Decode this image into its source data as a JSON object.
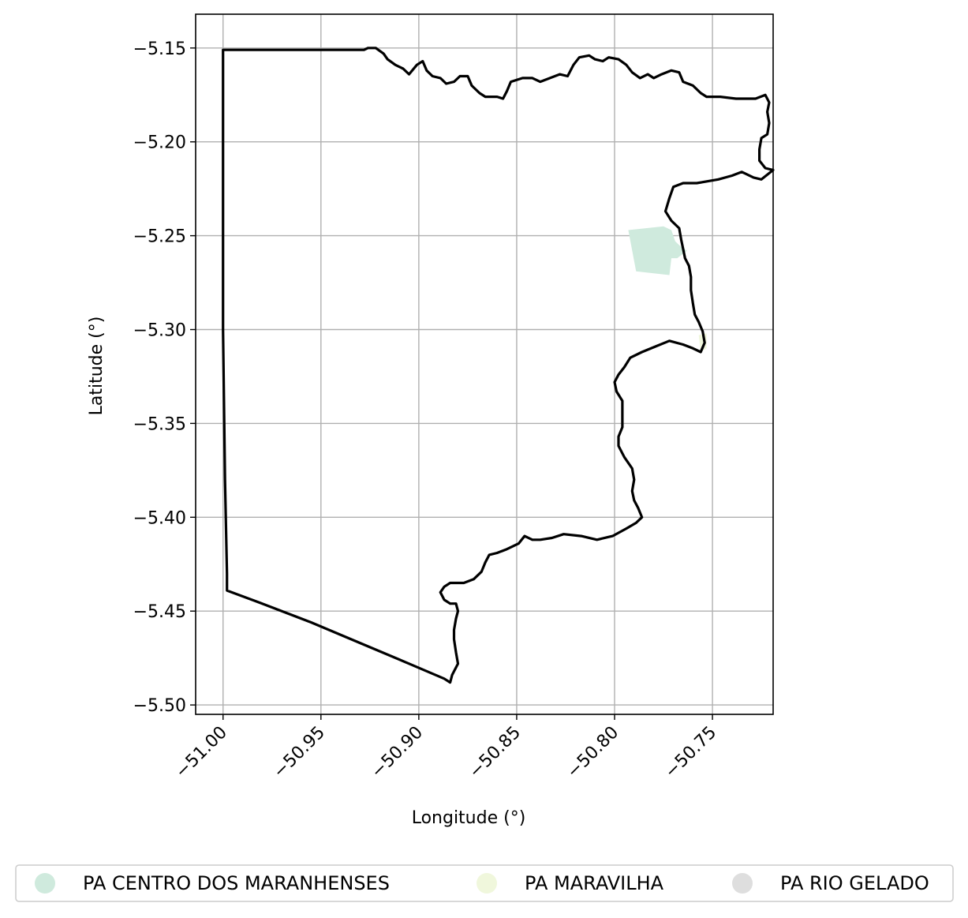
{
  "map": {
    "xlabel": "Longitude (°)",
    "ylabel": "Latitude (°)",
    "grid": true,
    "xlim": [
      -51.014,
      -50.719
    ],
    "ylim": [
      -5.505,
      -5.132
    ],
    "xticks": [
      {
        "value": -51.0,
        "label": "−51.00"
      },
      {
        "value": -50.95,
        "label": "−50.95"
      },
      {
        "value": -50.9,
        "label": "−50.90"
      },
      {
        "value": -50.85,
        "label": "−50.85"
      },
      {
        "value": -50.8,
        "label": "−50.80"
      },
      {
        "value": -50.75,
        "label": "−50.75"
      }
    ],
    "yticks": [
      {
        "value": -5.15,
        "label": "−5.15"
      },
      {
        "value": -5.2,
        "label": "−5.20"
      },
      {
        "value": -5.25,
        "label": "−5.25"
      },
      {
        "value": -5.3,
        "label": "−5.30"
      },
      {
        "value": -5.35,
        "label": "−5.35"
      },
      {
        "value": -5.4,
        "label": "−5.40"
      },
      {
        "value": -5.45,
        "label": "−5.45"
      },
      {
        "value": -5.5,
        "label": "−5.50"
      }
    ],
    "colors": {
      "boundary": "#000000",
      "grid": "#b0b0b0",
      "settlement_centro": "#cfeadd",
      "settlement_maravilha": "#f0f7dc",
      "settlement_rio_gelado": "#dedede"
    },
    "boundary": [
      [
        -51.0,
        -5.151
      ],
      [
        -50.928,
        -5.151
      ],
      [
        -50.926,
        -5.15
      ],
      [
        -50.922,
        -5.15
      ],
      [
        -50.918,
        -5.153
      ],
      [
        -50.916,
        -5.156
      ],
      [
        -50.912,
        -5.159
      ],
      [
        -50.908,
        -5.161
      ],
      [
        -50.905,
        -5.164
      ],
      [
        -50.901,
        -5.159
      ],
      [
        -50.898,
        -5.157
      ],
      [
        -50.896,
        -5.162
      ],
      [
        -50.893,
        -5.165
      ],
      [
        -50.889,
        -5.166
      ],
      [
        -50.886,
        -5.169
      ],
      [
        -50.882,
        -5.168
      ],
      [
        -50.879,
        -5.165
      ],
      [
        -50.875,
        -5.165
      ],
      [
        -50.873,
        -5.17
      ],
      [
        -50.869,
        -5.174
      ],
      [
        -50.866,
        -5.176
      ],
      [
        -50.86,
        -5.176
      ],
      [
        -50.857,
        -5.177
      ],
      [
        -50.855,
        -5.173
      ],
      [
        -50.853,
        -5.168
      ],
      [
        -50.847,
        -5.166
      ],
      [
        -50.842,
        -5.166
      ],
      [
        -50.838,
        -5.168
      ],
      [
        -50.833,
        -5.166
      ],
      [
        -50.828,
        -5.164
      ],
      [
        -50.824,
        -5.165
      ],
      [
        -50.821,
        -5.159
      ],
      [
        -50.818,
        -5.155
      ],
      [
        -50.813,
        -5.154
      ],
      [
        -50.81,
        -5.156
      ],
      [
        -50.806,
        -5.157
      ],
      [
        -50.803,
        -5.155
      ],
      [
        -50.798,
        -5.156
      ],
      [
        -50.794,
        -5.159
      ],
      [
        -50.791,
        -5.163
      ],
      [
        -50.787,
        -5.166
      ],
      [
        -50.783,
        -5.164
      ],
      [
        -50.78,
        -5.166
      ],
      [
        -50.776,
        -5.164
      ],
      [
        -50.771,
        -5.162
      ],
      [
        -50.767,
        -5.163
      ],
      [
        -50.765,
        -5.168
      ],
      [
        -50.76,
        -5.17
      ],
      [
        -50.756,
        -5.174
      ],
      [
        -50.753,
        -5.176
      ],
      [
        -50.746,
        -5.176
      ],
      [
        -50.738,
        -5.177
      ],
      [
        -50.728,
        -5.177
      ],
      [
        -50.723,
        -5.175
      ],
      [
        -50.721,
        -5.179
      ],
      [
        -50.722,
        -5.184
      ],
      [
        -50.721,
        -5.19
      ],
      [
        -50.722,
        -5.196
      ],
      [
        -50.725,
        -5.198
      ],
      [
        -50.726,
        -5.204
      ],
      [
        -50.726,
        -5.21
      ],
      [
        -50.723,
        -5.214
      ],
      [
        -50.719,
        -5.215
      ],
      [
        -50.725,
        -5.22
      ],
      [
        -50.729,
        -5.219
      ],
      [
        -50.735,
        -5.216
      ],
      [
        -50.74,
        -5.218
      ],
      [
        -50.747,
        -5.22
      ],
      [
        -50.758,
        -5.222
      ],
      [
        -50.765,
        -5.222
      ],
      [
        -50.77,
        -5.224
      ],
      [
        -50.772,
        -5.23
      ],
      [
        -50.774,
        -5.237
      ],
      [
        -50.771,
        -5.242
      ],
      [
        -50.767,
        -5.246
      ],
      [
        -50.766,
        -5.252
      ],
      [
        -50.765,
        -5.257
      ],
      [
        -50.764,
        -5.262
      ],
      [
        -50.762,
        -5.266
      ],
      [
        -50.761,
        -5.272
      ],
      [
        -50.761,
        -5.279
      ],
      [
        -50.76,
        -5.286
      ],
      [
        -50.759,
        -5.292
      ],
      [
        -50.757,
        -5.296
      ],
      [
        -50.755,
        -5.301
      ],
      [
        -50.754,
        -5.307
      ],
      [
        -50.756,
        -5.312
      ],
      [
        -50.76,
        -5.31
      ],
      [
        -50.765,
        -5.308
      ],
      [
        -50.772,
        -5.306
      ],
      [
        -50.779,
        -5.309
      ],
      [
        -50.786,
        -5.312
      ],
      [
        -50.792,
        -5.315
      ],
      [
        -50.795,
        -5.32
      ],
      [
        -50.798,
        -5.324
      ],
      [
        -50.8,
        -5.328
      ],
      [
        -50.799,
        -5.333
      ],
      [
        -50.796,
        -5.338
      ],
      [
        -50.796,
        -5.345
      ],
      [
        -50.796,
        -5.352
      ],
      [
        -50.798,
        -5.357
      ],
      [
        -50.798,
        -5.362
      ],
      [
        -50.795,
        -5.368
      ],
      [
        -50.791,
        -5.374
      ],
      [
        -50.79,
        -5.38
      ],
      [
        -50.791,
        -5.386
      ],
      [
        -50.79,
        -5.391
      ],
      [
        -50.788,
        -5.395
      ],
      [
        -50.786,
        -5.4
      ],
      [
        -50.789,
        -5.403
      ],
      [
        -50.794,
        -5.406
      ],
      [
        -50.801,
        -5.41
      ],
      [
        -50.809,
        -5.412
      ],
      [
        -50.817,
        -5.41
      ],
      [
        -50.826,
        -5.409
      ],
      [
        -50.832,
        -5.411
      ],
      [
        -50.838,
        -5.412
      ],
      [
        -50.842,
        -5.412
      ],
      [
        -50.846,
        -5.41
      ],
      [
        -50.849,
        -5.414
      ],
      [
        -50.855,
        -5.417
      ],
      [
        -50.86,
        -5.419
      ],
      [
        -50.864,
        -5.42
      ],
      [
        -50.866,
        -5.424
      ],
      [
        -50.868,
        -5.429
      ],
      [
        -50.872,
        -5.433
      ],
      [
        -50.877,
        -5.435
      ],
      [
        -50.884,
        -5.435
      ],
      [
        -50.887,
        -5.437
      ],
      [
        -50.889,
        -5.44
      ],
      [
        -50.887,
        -5.444
      ],
      [
        -50.884,
        -5.446
      ],
      [
        -50.881,
        -5.446
      ],
      [
        -50.88,
        -5.45
      ],
      [
        -50.881,
        -5.454
      ],
      [
        -50.882,
        -5.46
      ],
      [
        -50.882,
        -5.465
      ],
      [
        -50.881,
        -5.472
      ],
      [
        -50.88,
        -5.478
      ],
      [
        -50.883,
        -5.484
      ],
      [
        -50.884,
        -5.488
      ],
      [
        -50.887,
        -5.486
      ],
      [
        -50.905,
        -5.478
      ],
      [
        -50.93,
        -5.467
      ],
      [
        -50.955,
        -5.456
      ],
      [
        -50.98,
        -5.446
      ],
      [
        -50.998,
        -5.439
      ],
      [
        -50.998,
        -5.43
      ],
      [
        -50.999,
        -5.38
      ],
      [
        -51.0,
        -5.3
      ],
      [
        -51.0,
        -5.22
      ],
      [
        -51.0,
        -5.151
      ]
    ],
    "settlements": [
      {
        "name": "PA CENTRO DOS MARANHENSES",
        "color": "#cfeadd",
        "polygon": [
          [
            -50.793,
            -5.247
          ],
          [
            -50.775,
            -5.245
          ],
          [
            -50.771,
            -5.247
          ],
          [
            -50.769,
            -5.253
          ],
          [
            -50.766,
            -5.256
          ],
          [
            -50.763,
            -5.258
          ],
          [
            -50.768,
            -5.262
          ],
          [
            -50.771,
            -5.262
          ],
          [
            -50.772,
            -5.271
          ],
          [
            -50.789,
            -5.269
          ]
        ]
      },
      {
        "name": "PA MARAVILHA",
        "color": "#f0f7dc",
        "polygon": [
          [
            -50.757,
            -5.303
          ],
          [
            -50.753,
            -5.302
          ],
          [
            -50.753,
            -5.31
          ],
          [
            -50.756,
            -5.312
          ]
        ]
      },
      {
        "name": "PA RIO GELADO",
        "color": "#dedede",
        "polygon": []
      }
    ]
  },
  "legend": {
    "items": [
      {
        "label": "PA CENTRO DOS MARANHENSES",
        "color": "#cfeadd"
      },
      {
        "label": "PA MARAVILHA",
        "color": "#f0f7dc"
      },
      {
        "label": "PA RIO GELADO",
        "color": "#dedede"
      }
    ]
  }
}
